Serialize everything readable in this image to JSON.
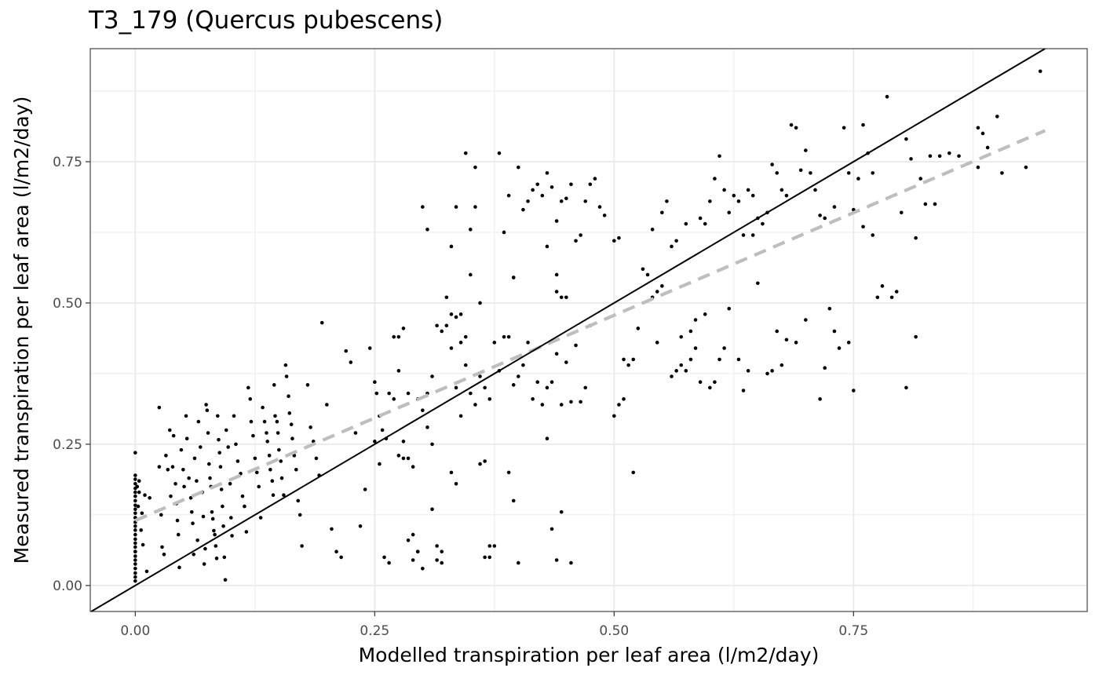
{
  "chart_data": {
    "type": "scatter",
    "title": "T3_179 (Quercus pubescens)",
    "xlabel": "Modelled transpiration per leaf area (l/m2/day)",
    "ylabel": "Measured transpiration per leaf area (l/m2/day)",
    "xlim": [
      -0.047,
      0.994
    ],
    "ylim": [
      -0.046,
      0.95
    ],
    "x_ticks": [
      "0.00",
      "0.25",
      "0.50",
      "0.75"
    ],
    "y_ticks": [
      "0.00",
      "0.25",
      "0.50",
      "0.75"
    ],
    "grid": true,
    "reference_line": {
      "label": "1:1",
      "slope": 1,
      "intercept": 0,
      "color": "#000000"
    },
    "fit_line": {
      "style": "dashed",
      "color": "#bebebe",
      "x": [
        0.0,
        0.95
      ],
      "y": [
        0.115,
        0.805
      ]
    },
    "point_color": "#000000",
    "points": [
      [
        0.0,
        0.235
      ],
      [
        0.0,
        0.195
      ],
      [
        0.0,
        0.188
      ],
      [
        0.0,
        0.18
      ],
      [
        0.0,
        0.172
      ],
      [
        0.0,
        0.165
      ],
      [
        0.0,
        0.158
      ],
      [
        0.0,
        0.15
      ],
      [
        0.0,
        0.142
      ],
      [
        0.0,
        0.135
      ],
      [
        0.0,
        0.128
      ],
      [
        0.0,
        0.12
      ],
      [
        0.0,
        0.112
      ],
      [
        0.0,
        0.105
      ],
      [
        0.0,
        0.098
      ],
      [
        0.0,
        0.09
      ],
      [
        0.0,
        0.082
      ],
      [
        0.0,
        0.075
      ],
      [
        0.0,
        0.068
      ],
      [
        0.0,
        0.06
      ],
      [
        0.0,
        0.052
      ],
      [
        0.0,
        0.045
      ],
      [
        0.0,
        0.038
      ],
      [
        0.0,
        0.03
      ],
      [
        0.0,
        0.022
      ],
      [
        0.0,
        0.015
      ],
      [
        0.0,
        0.008
      ],
      [
        0.0,
        0.12
      ],
      [
        0.0,
        0.06
      ],
      [
        0.002,
        0.175
      ],
      [
        0.003,
        0.14
      ],
      [
        0.004,
        0.165
      ],
      [
        0.006,
        0.098
      ],
      [
        0.007,
        0.128
      ],
      [
        0.004,
        0.185
      ],
      [
        0.008,
        0.072
      ],
      [
        0.01,
        0.16
      ],
      [
        0.012,
        0.025
      ],
      [
        0.015,
        0.155
      ],
      [
        0.025,
        0.315
      ],
      [
        0.025,
        0.21
      ],
      [
        0.027,
        0.125
      ],
      [
        0.028,
        0.068
      ],
      [
        0.03,
        0.055
      ],
      [
        0.032,
        0.23
      ],
      [
        0.034,
        0.205
      ],
      [
        0.036,
        0.275
      ],
      [
        0.037,
        0.158
      ],
      [
        0.039,
        0.21
      ],
      [
        0.04,
        0.265
      ],
      [
        0.042,
        0.18
      ],
      [
        0.043,
        0.145
      ],
      [
        0.044,
        0.115
      ],
      [
        0.045,
        0.09
      ],
      [
        0.046,
        0.032
      ],
      [
        0.048,
        0.24
      ],
      [
        0.05,
        0.205
      ],
      [
        0.051,
        0.175
      ],
      [
        0.053,
        0.3
      ],
      [
        0.054,
        0.26
      ],
      [
        0.056,
        0.19
      ],
      [
        0.058,
        0.155
      ],
      [
        0.059,
        0.13
      ],
      [
        0.06,
        0.11
      ],
      [
        0.061,
        0.055
      ],
      [
        0.062,
        0.225
      ],
      [
        0.064,
        0.185
      ],
      [
        0.065,
        0.08
      ],
      [
        0.066,
        0.29
      ],
      [
        0.068,
        0.245
      ],
      [
        0.07,
        0.165
      ],
      [
        0.071,
        0.122
      ],
      [
        0.072,
        0.038
      ],
      [
        0.073,
        0.065
      ],
      [
        0.074,
        0.32
      ],
      [
        0.075,
        0.31
      ],
      [
        0.076,
        0.27
      ],
      [
        0.077,
        0.215
      ],
      [
        0.078,
        0.19
      ],
      [
        0.079,
        0.175
      ],
      [
        0.08,
        0.13
      ],
      [
        0.081,
        0.118
      ],
      [
        0.082,
        0.097
      ],
      [
        0.083,
        0.09
      ],
      [
        0.084,
        0.07
      ],
      [
        0.085,
        0.048
      ],
      [
        0.086,
        0.3
      ],
      [
        0.087,
        0.258
      ],
      [
        0.088,
        0.235
      ],
      [
        0.089,
        0.21
      ],
      [
        0.09,
        0.17
      ],
      [
        0.091,
        0.14
      ],
      [
        0.092,
        0.105
      ],
      [
        0.093,
        0.05
      ],
      [
        0.094,
        0.01
      ],
      [
        0.095,
        0.275
      ],
      [
        0.097,
        0.245
      ],
      [
        0.099,
        0.18
      ],
      [
        0.1,
        0.12
      ],
      [
        0.101,
        0.088
      ],
      [
        0.103,
        0.3
      ],
      [
        0.105,
        0.25
      ],
      [
        0.107,
        0.22
      ],
      [
        0.11,
        0.198
      ],
      [
        0.112,
        0.158
      ],
      [
        0.114,
        0.14
      ],
      [
        0.116,
        0.095
      ],
      [
        0.118,
        0.35
      ],
      [
        0.12,
        0.33
      ],
      [
        0.121,
        0.29
      ],
      [
        0.123,
        0.265
      ],
      [
        0.125,
        0.225
      ],
      [
        0.127,
        0.2
      ],
      [
        0.129,
        0.175
      ],
      [
        0.131,
        0.12
      ],
      [
        0.133,
        0.315
      ],
      [
        0.135,
        0.29
      ],
      [
        0.137,
        0.27
      ],
      [
        0.138,
        0.255
      ],
      [
        0.14,
        0.23
      ],
      [
        0.141,
        0.205
      ],
      [
        0.143,
        0.185
      ],
      [
        0.144,
        0.16
      ],
      [
        0.145,
        0.355
      ],
      [
        0.146,
        0.3
      ],
      [
        0.148,
        0.29
      ],
      [
        0.149,
        0.27
      ],
      [
        0.15,
        0.24
      ],
      [
        0.152,
        0.22
      ],
      [
        0.153,
        0.19
      ],
      [
        0.155,
        0.16
      ],
      [
        0.157,
        0.39
      ],
      [
        0.158,
        0.37
      ],
      [
        0.16,
        0.335
      ],
      [
        0.161,
        0.305
      ],
      [
        0.163,
        0.285
      ],
      [
        0.164,
        0.26
      ],
      [
        0.166,
        0.23
      ],
      [
        0.168,
        0.205
      ],
      [
        0.17,
        0.15
      ],
      [
        0.172,
        0.125
      ],
      [
        0.174,
        0.07
      ],
      [
        0.18,
        0.355
      ],
      [
        0.183,
        0.28
      ],
      [
        0.186,
        0.255
      ],
      [
        0.189,
        0.225
      ],
      [
        0.192,
        0.195
      ],
      [
        0.195,
        0.465
      ],
      [
        0.2,
        0.32
      ],
      [
        0.205,
        0.1
      ],
      [
        0.21,
        0.06
      ],
      [
        0.215,
        0.05
      ],
      [
        0.22,
        0.415
      ],
      [
        0.225,
        0.395
      ],
      [
        0.23,
        0.27
      ],
      [
        0.235,
        0.105
      ],
      [
        0.24,
        0.17
      ],
      [
        0.245,
        0.42
      ],
      [
        0.25,
        0.255
      ],
      [
        0.255,
        0.215
      ],
      [
        0.26,
        0.05
      ],
      [
        0.265,
        0.04
      ],
      [
        0.27,
        0.44
      ],
      [
        0.275,
        0.38
      ],
      [
        0.28,
        0.255
      ],
      [
        0.285,
        0.225
      ],
      [
        0.29,
        0.21
      ],
      [
        0.295,
        0.06
      ],
      [
        0.3,
        0.03
      ],
      [
        0.305,
        0.28
      ],
      [
        0.31,
        0.135
      ],
      [
        0.315,
        0.045
      ],
      [
        0.32,
        0.04
      ],
      [
        0.33,
        0.2
      ],
      [
        0.335,
        0.18
      ],
      [
        0.25,
        0.36
      ],
      [
        0.252,
        0.34
      ],
      [
        0.255,
        0.3
      ],
      [
        0.258,
        0.275
      ],
      [
        0.262,
        0.26
      ],
      [
        0.265,
        0.34
      ],
      [
        0.27,
        0.33
      ],
      [
        0.275,
        0.23
      ],
      [
        0.28,
        0.225
      ],
      [
        0.285,
        0.08
      ],
      [
        0.29,
        0.045
      ],
      [
        0.295,
        0.33
      ],
      [
        0.3,
        0.31
      ],
      [
        0.305,
        0.34
      ],
      [
        0.31,
        0.37
      ],
      [
        0.315,
        0.46
      ],
      [
        0.32,
        0.45
      ],
      [
        0.325,
        0.46
      ],
      [
        0.33,
        0.42
      ],
      [
        0.335,
        0.35
      ],
      [
        0.34,
        0.43
      ],
      [
        0.345,
        0.44
      ],
      [
        0.35,
        0.63
      ],
      [
        0.355,
        0.67
      ],
      [
        0.36,
        0.5
      ],
      [
        0.365,
        0.22
      ],
      [
        0.37,
        0.05
      ],
      [
        0.375,
        0.07
      ],
      [
        0.275,
        0.44
      ],
      [
        0.28,
        0.455
      ],
      [
        0.285,
        0.34
      ],
      [
        0.29,
        0.09
      ],
      [
        0.295,
        0.06
      ],
      [
        0.3,
        0.67
      ],
      [
        0.305,
        0.63
      ],
      [
        0.31,
        0.25
      ],
      [
        0.315,
        0.07
      ],
      [
        0.32,
        0.06
      ],
      [
        0.325,
        0.51
      ],
      [
        0.33,
        0.48
      ],
      [
        0.335,
        0.475
      ],
      [
        0.34,
        0.3
      ],
      [
        0.345,
        0.39
      ],
      [
        0.35,
        0.34
      ],
      [
        0.355,
        0.32
      ],
      [
        0.36,
        0.215
      ],
      [
        0.365,
        0.05
      ],
      [
        0.37,
        0.07
      ],
      [
        0.33,
        0.6
      ],
      [
        0.335,
        0.67
      ],
      [
        0.34,
        0.48
      ],
      [
        0.345,
        0.765
      ],
      [
        0.35,
        0.55
      ],
      [
        0.355,
        0.74
      ],
      [
        0.36,
        0.37
      ],
      [
        0.365,
        0.35
      ],
      [
        0.37,
        0.33
      ],
      [
        0.375,
        0.43
      ],
      [
        0.38,
        0.765
      ],
      [
        0.385,
        0.625
      ],
      [
        0.39,
        0.69
      ],
      [
        0.395,
        0.545
      ],
      [
        0.4,
        0.74
      ],
      [
        0.405,
        0.665
      ],
      [
        0.41,
        0.68
      ],
      [
        0.415,
        0.7
      ],
      [
        0.42,
        0.71
      ],
      [
        0.425,
        0.69
      ],
      [
        0.43,
        0.73
      ],
      [
        0.435,
        0.705
      ],
      [
        0.44,
        0.645
      ],
      [
        0.445,
        0.68
      ],
      [
        0.45,
        0.685
      ],
      [
        0.455,
        0.71
      ],
      [
        0.46,
        0.61
      ],
      [
        0.465,
        0.62
      ],
      [
        0.47,
        0.68
      ],
      [
        0.475,
        0.71
      ],
      [
        0.48,
        0.72
      ],
      [
        0.485,
        0.67
      ],
      [
        0.49,
        0.655
      ],
      [
        0.38,
        0.38
      ],
      [
        0.385,
        0.44
      ],
      [
        0.39,
        0.44
      ],
      [
        0.395,
        0.355
      ],
      [
        0.4,
        0.37
      ],
      [
        0.405,
        0.39
      ],
      [
        0.41,
        0.43
      ],
      [
        0.415,
        0.33
      ],
      [
        0.42,
        0.36
      ],
      [
        0.425,
        0.32
      ],
      [
        0.43,
        0.35
      ],
      [
        0.435,
        0.36
      ],
      [
        0.44,
        0.41
      ],
      [
        0.445,
        0.32
      ],
      [
        0.45,
        0.395
      ],
      [
        0.455,
        0.325
      ],
      [
        0.46,
        0.425
      ],
      [
        0.465,
        0.325
      ],
      [
        0.47,
        0.35
      ],
      [
        0.475,
        0.46
      ],
      [
        0.39,
        0.2
      ],
      [
        0.395,
        0.15
      ],
      [
        0.4,
        0.04
      ],
      [
        0.43,
        0.26
      ],
      [
        0.435,
        0.1
      ],
      [
        0.44,
        0.045
      ],
      [
        0.445,
        0.13
      ],
      [
        0.455,
        0.04
      ],
      [
        0.43,
        0.6
      ],
      [
        0.44,
        0.52
      ],
      [
        0.445,
        0.51
      ],
      [
        0.45,
        0.51
      ],
      [
        0.44,
        0.55
      ],
      [
        0.395,
        0.545
      ],
      [
        0.5,
        0.61
      ],
      [
        0.505,
        0.615
      ],
      [
        0.51,
        0.33
      ],
      [
        0.515,
        0.39
      ],
      [
        0.52,
        0.4
      ],
      [
        0.525,
        0.455
      ],
      [
        0.53,
        0.56
      ],
      [
        0.535,
        0.55
      ],
      [
        0.54,
        0.63
      ],
      [
        0.545,
        0.52
      ],
      [
        0.55,
        0.66
      ],
      [
        0.555,
        0.68
      ],
      [
        0.56,
        0.6
      ],
      [
        0.565,
        0.61
      ],
      [
        0.57,
        0.44
      ],
      [
        0.575,
        0.38
      ],
      [
        0.58,
        0.4
      ],
      [
        0.585,
        0.42
      ],
      [
        0.59,
        0.65
      ],
      [
        0.595,
        0.64
      ],
      [
        0.6,
        0.68
      ],
      [
        0.605,
        0.72
      ],
      [
        0.61,
        0.76
      ],
      [
        0.615,
        0.7
      ],
      [
        0.62,
        0.66
      ],
      [
        0.625,
        0.69
      ],
      [
        0.63,
        0.68
      ],
      [
        0.635,
        0.62
      ],
      [
        0.64,
        0.7
      ],
      [
        0.645,
        0.69
      ],
      [
        0.65,
        0.65
      ],
      [
        0.655,
        0.64
      ],
      [
        0.66,
        0.66
      ],
      [
        0.665,
        0.745
      ],
      [
        0.67,
        0.73
      ],
      [
        0.675,
        0.7
      ],
      [
        0.68,
        0.69
      ],
      [
        0.685,
        0.815
      ],
      [
        0.69,
        0.81
      ],
      [
        0.695,
        0.735
      ],
      [
        0.7,
        0.77
      ],
      [
        0.705,
        0.73
      ],
      [
        0.71,
        0.7
      ],
      [
        0.715,
        0.655
      ],
      [
        0.5,
        0.3
      ],
      [
        0.505,
        0.32
      ],
      [
        0.51,
        0.4
      ],
      [
        0.52,
        0.2
      ],
      [
        0.54,
        0.51
      ],
      [
        0.545,
        0.43
      ],
      [
        0.55,
        0.53
      ],
      [
        0.56,
        0.37
      ],
      [
        0.565,
        0.38
      ],
      [
        0.57,
        0.39
      ],
      [
        0.575,
        0.64
      ],
      [
        0.58,
        0.45
      ],
      [
        0.585,
        0.47
      ],
      [
        0.59,
        0.36
      ],
      [
        0.595,
        0.48
      ],
      [
        0.6,
        0.35
      ],
      [
        0.605,
        0.36
      ],
      [
        0.61,
        0.4
      ],
      [
        0.615,
        0.42
      ],
      [
        0.62,
        0.49
      ],
      [
        0.63,
        0.4
      ],
      [
        0.635,
        0.345
      ],
      [
        0.64,
        0.38
      ],
      [
        0.645,
        0.62
      ],
      [
        0.65,
        0.535
      ],
      [
        0.66,
        0.375
      ],
      [
        0.665,
        0.38
      ],
      [
        0.67,
        0.45
      ],
      [
        0.675,
        0.39
      ],
      [
        0.68,
        0.435
      ],
      [
        0.69,
        0.43
      ],
      [
        0.7,
        0.47
      ],
      [
        0.715,
        0.33
      ],
      [
        0.72,
        0.385
      ],
      [
        0.725,
        0.49
      ],
      [
        0.73,
        0.45
      ],
      [
        0.735,
        0.42
      ],
      [
        0.74,
        0.81
      ],
      [
        0.745,
        0.73
      ],
      [
        0.75,
        0.665
      ],
      [
        0.755,
        0.72
      ],
      [
        0.76,
        0.635
      ],
      [
        0.765,
        0.765
      ],
      [
        0.77,
        0.73
      ],
      [
        0.775,
        0.51
      ],
      [
        0.78,
        0.53
      ],
      [
        0.785,
        0.865
      ],
      [
        0.79,
        0.51
      ],
      [
        0.795,
        0.52
      ],
      [
        0.8,
        0.66
      ],
      [
        0.805,
        0.79
      ],
      [
        0.81,
        0.755
      ],
      [
        0.815,
        0.44
      ],
      [
        0.82,
        0.72
      ],
      [
        0.825,
        0.675
      ],
      [
        0.83,
        0.76
      ],
      [
        0.835,
        0.675
      ],
      [
        0.84,
        0.76
      ],
      [
        0.85,
        0.765
      ],
      [
        0.86,
        0.76
      ],
      [
        0.745,
        0.43
      ],
      [
        0.75,
        0.345
      ],
      [
        0.805,
        0.35
      ],
      [
        0.815,
        0.615
      ],
      [
        0.76,
        0.815
      ],
      [
        0.77,
        0.62
      ],
      [
        0.73,
        0.67
      ],
      [
        0.72,
        0.65
      ],
      [
        0.88,
        0.81
      ],
      [
        0.885,
        0.8
      ],
      [
        0.89,
        0.775
      ],
      [
        0.88,
        0.74
      ],
      [
        0.9,
        0.83
      ],
      [
        0.905,
        0.73
      ],
      [
        0.93,
        0.74
      ],
      [
        0.945,
        0.91
      ]
    ]
  }
}
